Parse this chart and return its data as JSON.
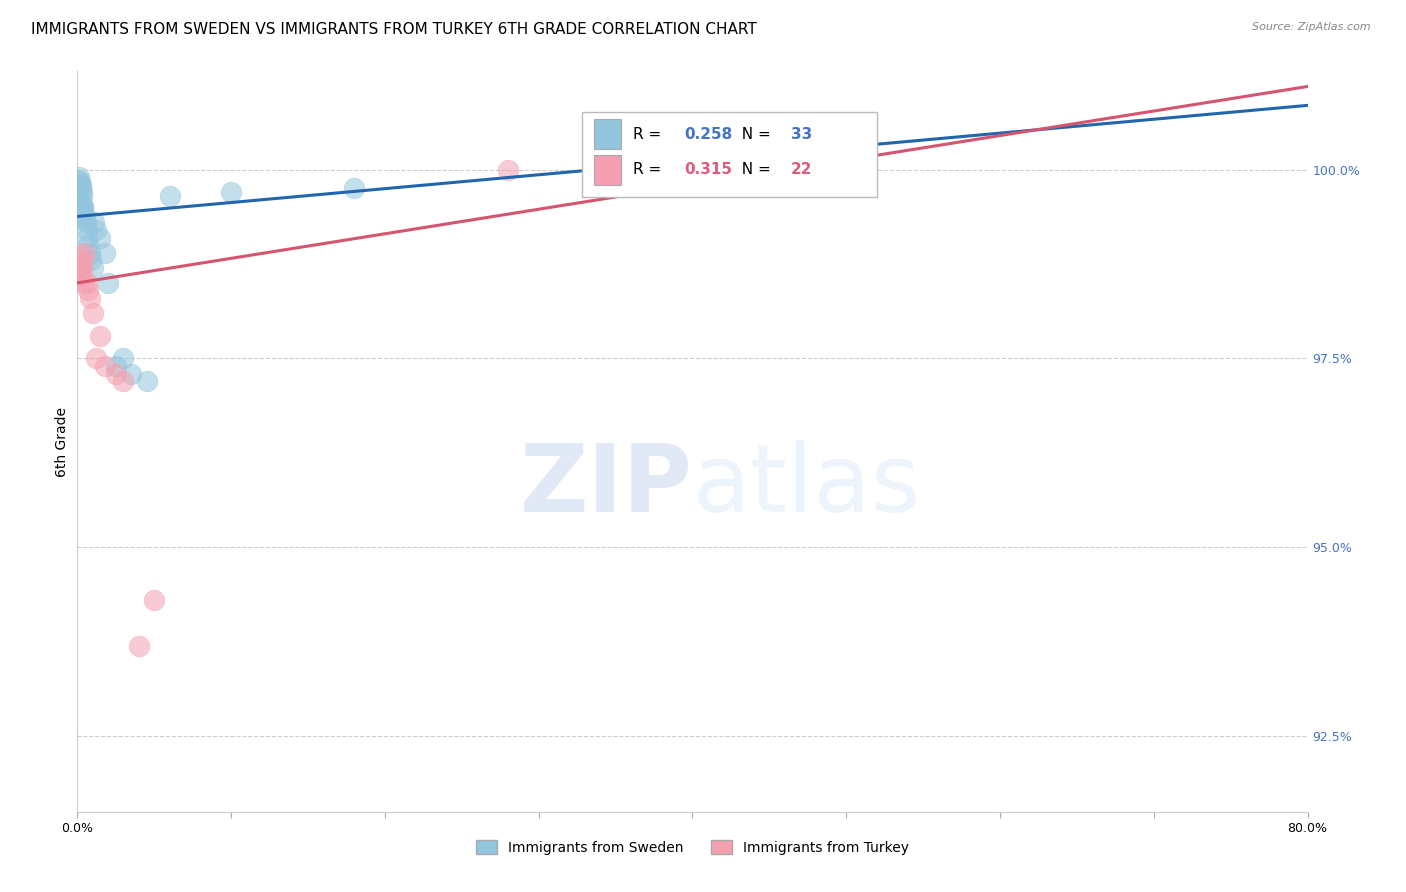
{
  "title": "IMMIGRANTS FROM SWEDEN VS IMMIGRANTS FROM TURKEY 6TH GRADE CORRELATION CHART",
  "source": "Source: ZipAtlas.com",
  "ylabel": "6th Grade",
  "y_ticks": [
    92.5,
    95.0,
    97.5,
    100.0
  ],
  "y_tick_labels": [
    "92.5%",
    "95.0%",
    "97.5%",
    "100.0%"
  ],
  "xlim": [
    0.0,
    80.0
  ],
  "ylim": [
    91.5,
    101.3
  ],
  "legend_blue_r": "0.258",
  "legend_blue_n": "33",
  "legend_pink_r": "0.315",
  "legend_pink_n": "22",
  "blue_color": "#92c5de",
  "pink_color": "#f4a0b0",
  "blue_line_color": "#2166ac",
  "pink_line_color": "#d6556e",
  "sweden_x": [
    0.05,
    0.1,
    0.15,
    0.18,
    0.22,
    0.25,
    0.28,
    0.3,
    0.32,
    0.35,
    0.38,
    0.4,
    0.45,
    0.5,
    0.55,
    0.6,
    0.65,
    0.7,
    0.8,
    0.9,
    1.0,
    1.1,
    1.2,
    1.5,
    1.8,
    2.0,
    2.5,
    3.0,
    3.5,
    4.5,
    6.0,
    10.0,
    18.0
  ],
  "sweden_y": [
    99.85,
    99.9,
    99.85,
    99.8,
    99.75,
    99.8,
    99.7,
    99.65,
    99.55,
    99.5,
    99.45,
    99.5,
    99.4,
    99.35,
    99.3,
    99.2,
    99.1,
    99.0,
    98.9,
    98.8,
    98.7,
    99.3,
    99.2,
    99.1,
    98.9,
    98.5,
    97.4,
    97.5,
    97.3,
    97.2,
    99.65,
    99.7,
    99.75
  ],
  "turkey_x": [
    0.05,
    0.1,
    0.15,
    0.2,
    0.25,
    0.3,
    0.35,
    0.4,
    0.5,
    0.6,
    0.7,
    0.8,
    1.0,
    1.2,
    1.5,
    1.8,
    2.5,
    3.0,
    4.0,
    5.0,
    28.0,
    45.0
  ],
  "turkey_y": [
    98.6,
    98.7,
    98.8,
    98.85,
    98.7,
    98.6,
    98.5,
    98.75,
    98.9,
    98.5,
    98.4,
    98.3,
    98.1,
    97.5,
    97.8,
    97.4,
    97.3,
    97.2,
    93.7,
    94.3,
    100.0,
    99.8
  ],
  "blue_line_x0": 0.0,
  "blue_line_y0": 99.38,
  "blue_line_x1": 80.0,
  "blue_line_y1": 100.85,
  "pink_line_x0": 0.0,
  "pink_line_y0": 98.5,
  "pink_line_x1": 80.0,
  "pink_line_y1": 101.1,
  "watermark_zip": "ZIP",
  "watermark_atlas": "atlas",
  "legend_items": [
    "Immigrants from Sweden",
    "Immigrants from Turkey"
  ],
  "grid_color": "#cccccc",
  "background_color": "#ffffff",
  "title_fontsize": 11,
  "tick_label_fontsize": 9,
  "legend_r_color_blue": "#4472c4",
  "legend_r_color_pink": "#e05a7a",
  "x_tick_positions": [
    0,
    10,
    20,
    30,
    40,
    50,
    60,
    70,
    80
  ]
}
